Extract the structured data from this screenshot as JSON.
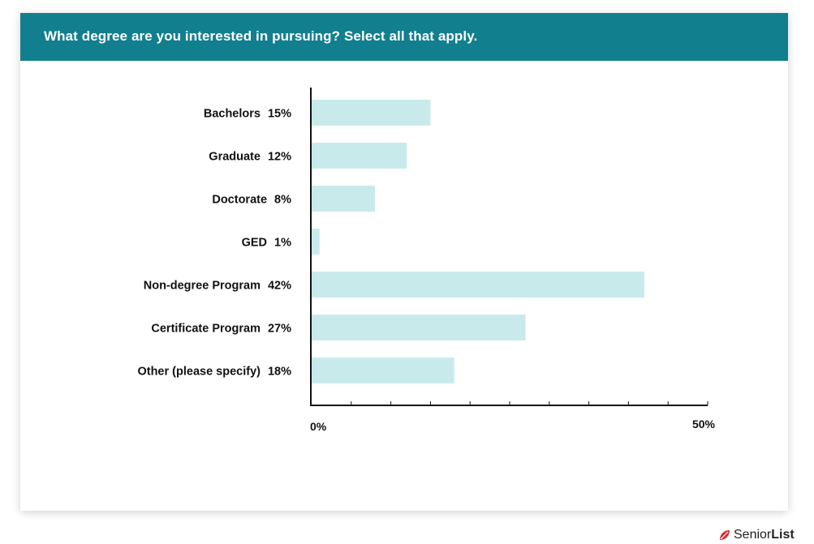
{
  "header": {
    "title": "What degree are you interested in pursuing? Select all that apply."
  },
  "brand": {
    "name_light": "Senior",
    "name_bold": "List",
    "logo_icon": "red-leaf-logo"
  },
  "colors": {
    "header_bg": "#127f8f",
    "bar_fill": "#c9eaea",
    "axis": "#111111",
    "text": "#111111",
    "brand_red": "#d62b2b"
  },
  "chart_data": {
    "type": "bar",
    "orientation": "horizontal",
    "title": "What degree are you interested in pursuing? Select all that apply.",
    "categories": [
      "Bachelors",
      "Graduate",
      "Doctorate",
      "GED",
      "Non-degree Program",
      "Certificate Program",
      "Other (please specify)"
    ],
    "values": [
      15,
      12,
      8,
      1,
      42,
      27,
      18
    ],
    "value_labels": [
      "15%",
      "12%",
      "8%",
      "1%",
      "42%",
      "27%",
      "18%"
    ],
    "xlim": [
      0,
      50
    ],
    "x_tick_labels": [
      "0%",
      "50%"
    ],
    "minor_tick_count": 10,
    "grid": false,
    "legend": "none"
  }
}
